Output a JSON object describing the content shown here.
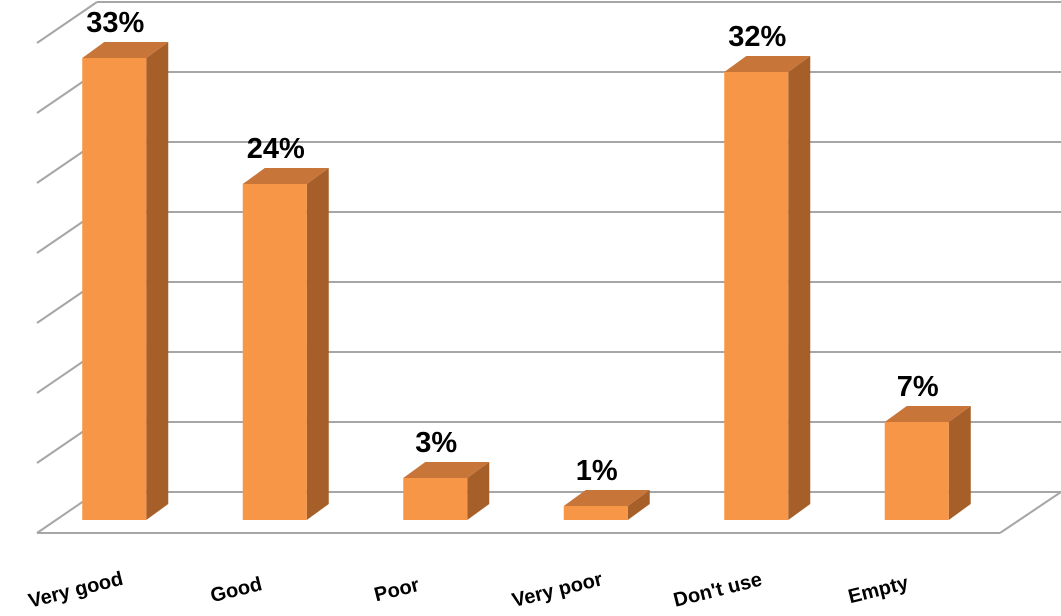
{
  "chart_data": {
    "type": "bar",
    "categories": [
      "Very good",
      "Good",
      "Poor",
      "Very poor",
      "Don't use",
      "Empty"
    ],
    "values": [
      33,
      24,
      3,
      1,
      32,
      7
    ],
    "data_labels": [
      "33%",
      "24%",
      "3%",
      "1%",
      "32%",
      "7%"
    ],
    "unit": "%",
    "ylim": [
      0,
      35
    ],
    "grid": true,
    "legend": "none",
    "style": "3d-column",
    "colors": {
      "bar_front": "#f79646",
      "bar_side": "#a65f28",
      "bar_top": "#c8753a",
      "grid": "#a6a6a6"
    }
  }
}
